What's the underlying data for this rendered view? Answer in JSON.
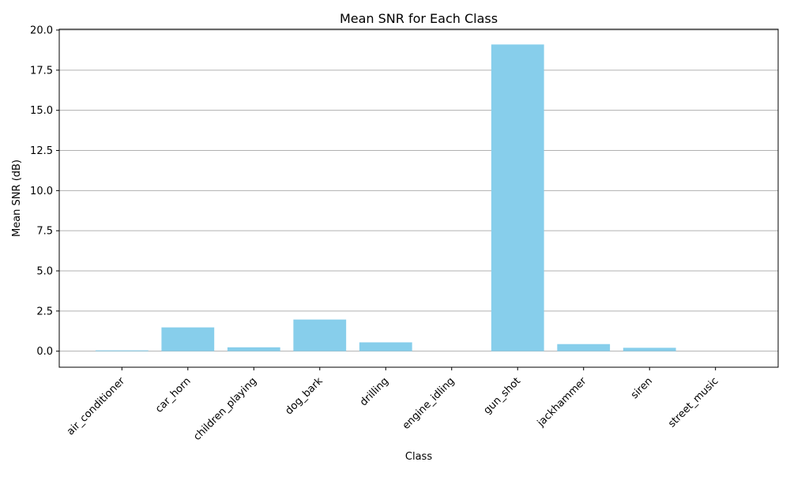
{
  "chart_data": {
    "type": "bar",
    "title": "Mean SNR for Each Class",
    "xlabel": "Class",
    "ylabel": "Mean SNR (dB)",
    "categories": [
      "air_conditioner",
      "car_horn",
      "children_playing",
      "dog_bark",
      "drilling",
      "engine_idling",
      "gun_shot",
      "jackhammer",
      "siren",
      "street_music"
    ],
    "values": [
      0.05,
      1.48,
      0.24,
      1.97,
      0.55,
      0.0,
      19.1,
      0.44,
      0.21,
      0.0
    ],
    "ylim": [
      -1.0,
      20.05
    ],
    "yticks": [
      0.0,
      2.5,
      5.0,
      7.5,
      10.0,
      12.5,
      15.0,
      17.5,
      20.0
    ],
    "ytick_labels": [
      "0.0",
      "2.5",
      "5.0",
      "7.5",
      "10.0",
      "12.5",
      "15.0",
      "17.5",
      "20.0"
    ],
    "grid": "horizontal",
    "bar_color": "#87ceeb",
    "grid_color": "#b0b0b0"
  }
}
